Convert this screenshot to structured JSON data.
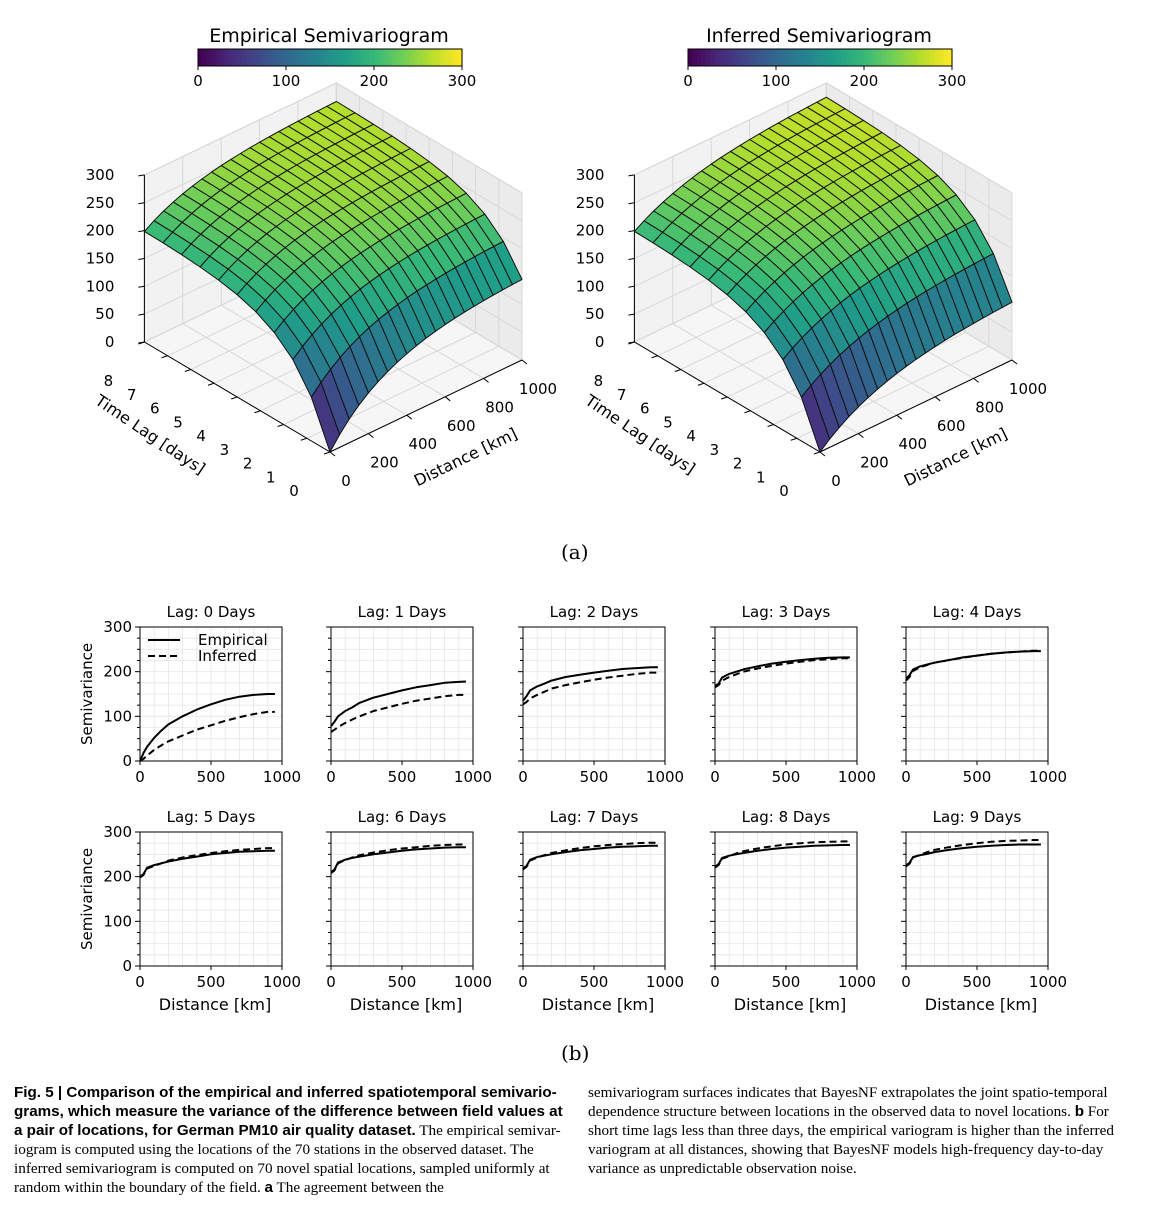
{
  "figure": {
    "panel_a_label": "(a)",
    "panel_b_label": "(b)"
  },
  "chart_data": [
    {
      "type": "surface",
      "title": "Empirical Semivariogram",
      "colorbar": {
        "colormap": "viridis",
        "ticks": [
          0,
          100,
          200,
          300
        ],
        "range": [
          0,
          300
        ]
      },
      "zlim": [
        0,
        300
      ],
      "zticks": [
        0,
        50,
        100,
        150,
        200,
        250,
        300
      ],
      "xlabel": "Distance [km]",
      "xticks": [
        0,
        200,
        400,
        600,
        800,
        1000
      ],
      "ylabel": "Time Lag [days]",
      "yticks": [
        0,
        1,
        2,
        3,
        4,
        5,
        6,
        7,
        8
      ],
      "model": {
        "nugget0": 0,
        "sill0": 150,
        "nugget_high": 200,
        "sill_high": 270,
        "range_km": 300
      }
    },
    {
      "type": "surface",
      "title": "Inferred Semivariogram",
      "colorbar": {
        "colormap": "viridis",
        "ticks": [
          0,
          100,
          200,
          300
        ],
        "range": [
          0,
          300
        ]
      },
      "zlim": [
        0,
        300
      ],
      "zticks": [
        0,
        50,
        100,
        150,
        200,
        250,
        300
      ],
      "xlabel": "Distance [km]",
      "xticks": [
        0,
        200,
        400,
        600,
        800,
        1000
      ],
      "ylabel": "Time Lag [days]",
      "yticks": [
        0,
        1,
        2,
        3,
        4,
        5,
        6,
        7,
        8
      ],
      "model": {
        "nugget0": 0,
        "sill0": 110,
        "nugget_high": 200,
        "sill_high": 280,
        "range_km": 350
      }
    },
    {
      "type": "line",
      "layout": "small-multiples 2x5",
      "xlabel": "Distance [km]",
      "ylabel": "Semivariance",
      "xlim": [
        0,
        1000
      ],
      "ylim": [
        0,
        300
      ],
      "xticks": [
        0,
        500,
        1000
      ],
      "yticks": [
        0,
        100,
        200,
        300
      ],
      "grid": true,
      "legend": {
        "position": "top-left",
        "entries": [
          "Empirical",
          "Inferred"
        ]
      },
      "x": [
        0,
        25,
        50,
        100,
        150,
        200,
        300,
        400,
        500,
        600,
        700,
        800,
        900,
        950
      ],
      "panels": [
        {
          "title": "Lag: 0 Days",
          "series": [
            {
              "name": "Empirical",
              "style": "solid",
              "values": [
                0,
                18,
                32,
                52,
                68,
                82,
                100,
                115,
                127,
                137,
                144,
                148,
                150,
                150
              ]
            },
            {
              "name": "Inferred",
              "style": "dashed",
              "values": [
                0,
                5,
                12,
                25,
                35,
                44,
                57,
                70,
                80,
                90,
                98,
                105,
                110,
                110
              ]
            }
          ]
        },
        {
          "title": "Lag: 1 Days",
          "series": [
            {
              "name": "Empirical",
              "style": "solid",
              "values": [
                78,
                88,
                100,
                112,
                120,
                130,
                142,
                150,
                158,
                165,
                170,
                175,
                177,
                178
              ]
            },
            {
              "name": "Inferred",
              "style": "dashed",
              "values": [
                65,
                70,
                76,
                85,
                93,
                100,
                112,
                120,
                128,
                135,
                140,
                145,
                148,
                148
              ]
            }
          ]
        },
        {
          "title": "Lag: 2 Days",
          "series": [
            {
              "name": "Empirical",
              "style": "solid",
              "values": [
                135,
                145,
                158,
                167,
                173,
                180,
                188,
                193,
                198,
                202,
                206,
                208,
                210,
                210
              ]
            },
            {
              "name": "Inferred",
              "style": "dashed",
              "values": [
                127,
                132,
                140,
                148,
                155,
                162,
                170,
                176,
                182,
                187,
                191,
                195,
                198,
                198
              ]
            }
          ]
        },
        {
          "title": "Lag: 3 Days",
          "series": [
            {
              "name": "Empirical",
              "style": "solid",
              "values": [
                168,
                173,
                187,
                195,
                200,
                205,
                212,
                218,
                222,
                226,
                229,
                231,
                232,
                232
              ]
            },
            {
              "name": "Inferred",
              "style": "dashed",
              "values": [
                165,
                170,
                180,
                188,
                194,
                200,
                207,
                213,
                218,
                222,
                226,
                228,
                230,
                230
              ]
            }
          ]
        },
        {
          "title": "Lag: 4 Days",
          "series": [
            {
              "name": "Empirical",
              "style": "solid",
              "values": [
                185,
                192,
                205,
                212,
                216,
                220,
                226,
                232,
                236,
                240,
                243,
                245,
                246,
                246
              ]
            },
            {
              "name": "Inferred",
              "style": "dashed",
              "values": [
                180,
                188,
                202,
                210,
                215,
                220,
                226,
                231,
                236,
                240,
                243,
                245,
                247,
                247
              ]
            }
          ]
        },
        {
          "title": "Lag: 5 Days",
          "series": [
            {
              "name": "Empirical",
              "style": "solid",
              "values": [
                200,
                206,
                220,
                226,
                230,
                234,
                240,
                245,
                250,
                253,
                256,
                257,
                258,
                258
              ]
            },
            {
              "name": "Inferred",
              "style": "dashed",
              "values": [
                198,
                204,
                218,
                224,
                230,
                236,
                243,
                248,
                253,
                257,
                260,
                262,
                264,
                264
              ]
            }
          ]
        },
        {
          "title": "Lag: 6 Days",
          "series": [
            {
              "name": "Empirical",
              "style": "solid",
              "values": [
                210,
                216,
                232,
                238,
                242,
                245,
                250,
                254,
                258,
                261,
                263,
                265,
                266,
                266
              ]
            },
            {
              "name": "Inferred",
              "style": "dashed",
              "values": [
                208,
                214,
                230,
                237,
                243,
                248,
                254,
                259,
                263,
                266,
                269,
                271,
                272,
                272
              ]
            }
          ]
        },
        {
          "title": "Lag: 7 Days",
          "series": [
            {
              "name": "Empirical",
              "style": "solid",
              "values": [
                218,
                224,
                238,
                244,
                247,
                250,
                255,
                259,
                262,
                265,
                267,
                268,
                269,
                269
              ]
            },
            {
              "name": "Inferred",
              "style": "dashed",
              "values": [
                216,
                222,
                236,
                243,
                248,
                253,
                259,
                264,
                268,
                271,
                273,
                275,
                276,
                276
              ]
            }
          ]
        },
        {
          "title": "Lag: 8 Days",
          "series": [
            {
              "name": "Empirical",
              "style": "solid",
              "values": [
                222,
                228,
                242,
                247,
                250,
                253,
                258,
                262,
                265,
                267,
                269,
                270,
                271,
                271
              ]
            },
            {
              "name": "Inferred",
              "style": "dashed",
              "values": [
                220,
                226,
                240,
                246,
                252,
                257,
                263,
                268,
                272,
                275,
                277,
                278,
                279,
                279
              ]
            }
          ]
        },
        {
          "title": "Lag: 9 Days",
          "series": [
            {
              "name": "Empirical",
              "style": "solid",
              "values": [
                225,
                231,
                244,
                248,
                251,
                255,
                260,
                264,
                267,
                269,
                271,
                272,
                272,
                272
              ]
            },
            {
              "name": "Inferred",
              "style": "dashed",
              "values": [
                223,
                229,
                243,
                249,
                255,
                260,
                266,
                271,
                275,
                278,
                280,
                281,
                282,
                282
              ]
            }
          ]
        }
      ]
    }
  ],
  "caption": {
    "label": "Fig. 5 | ",
    "bold_text": "Comparison of the empirical and inferred spatiotemporal semivario-grams, which measure the variance of the difference between field values at a pair of locations, for German PM10 air quality dataset.",
    "text1": " The empirical semivar-iogram is computed using the locations of the 70 stations in the observed dataset. The inferred semivariogram is computed on 70 novel spatial locations, sampled uniformly at random within the boundary of the field. ",
    "a_label": "a",
    "text2": " The agreement between the",
    "text3": "semivariogram surfaces indicates that BayesNF extrapolates the joint spatio-temporal dependence structure between locations in the observed data to novel locations. ",
    "b_label": "b",
    "text4": " For short time lags less than three days, the empirical variogram is higher than the inferred variogram at all distances, showing that BayesNF models high-frequency day-to-day variance as unpredictable observation noise."
  }
}
